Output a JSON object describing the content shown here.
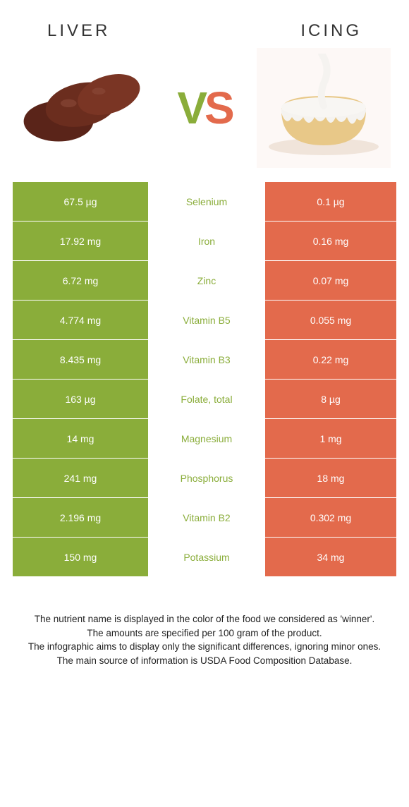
{
  "header": {
    "left_title": "Liver",
    "right_title": "Icing",
    "vs_v": "V",
    "vs_s": "S"
  },
  "colors": {
    "left_bg": "#8aad3a",
    "right_bg": "#e36a4c",
    "mid_text_winner": "#8aad3a",
    "row_border": "#ffffff"
  },
  "rows": [
    {
      "left": "67.5 µg",
      "label": "Selenium",
      "right": "0.1 µg",
      "winner": "left"
    },
    {
      "left": "17.92 mg",
      "label": "Iron",
      "right": "0.16 mg",
      "winner": "left"
    },
    {
      "left": "6.72 mg",
      "label": "Zinc",
      "right": "0.07 mg",
      "winner": "left"
    },
    {
      "left": "4.774 mg",
      "label": "Vitamin B5",
      "right": "0.055 mg",
      "winner": "left"
    },
    {
      "left": "8.435 mg",
      "label": "Vitamin B3",
      "right": "0.22 mg",
      "winner": "left"
    },
    {
      "left": "163 µg",
      "label": "Folate, total",
      "right": "8 µg",
      "winner": "left"
    },
    {
      "left": "14 mg",
      "label": "Magnesium",
      "right": "1 mg",
      "winner": "left"
    },
    {
      "left": "241 mg",
      "label": "Phosphorus",
      "right": "18 mg",
      "winner": "left"
    },
    {
      "left": "2.196 mg",
      "label": "Vitamin B2",
      "right": "0.302 mg",
      "winner": "left"
    },
    {
      "left": "150 mg",
      "label": "Potassium",
      "right": "34 mg",
      "winner": "left"
    }
  ],
  "footer": {
    "line1": "The nutrient name is displayed in the color of the food we considered as 'winner'.",
    "line2": "The amounts are specified per 100 gram of the product.",
    "line3": "The infographic aims to display only the significant differences, ignoring minor ones.",
    "line4": "The main source of information is USDA Food Composition Database."
  }
}
